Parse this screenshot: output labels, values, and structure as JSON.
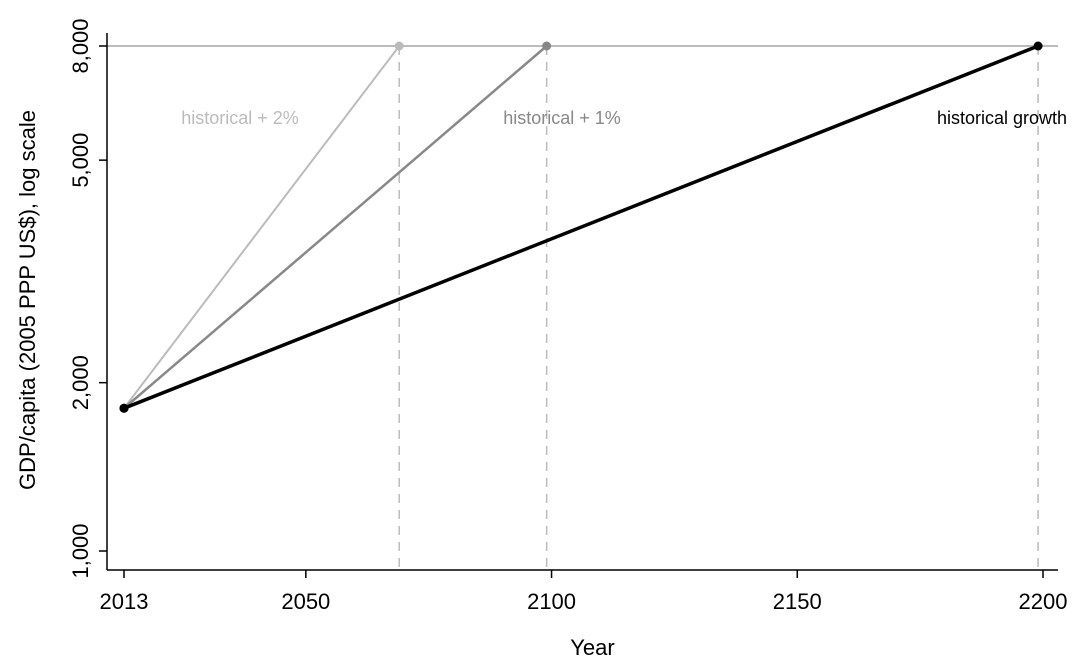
{
  "chart_data": {
    "type": "line",
    "xlabel": "Year",
    "ylabel": "GDP/capita (2005 PPP US$), log scale",
    "y_scale": "log",
    "x_ticks": [
      {
        "value": 2013,
        "label": "2013"
      },
      {
        "value": 2050,
        "label": "2050"
      },
      {
        "value": 2100,
        "label": "2100"
      },
      {
        "value": 2150,
        "label": "2150"
      },
      {
        "value": 2200,
        "label": "2200"
      }
    ],
    "y_ticks": [
      {
        "value": 1000,
        "label": "1,000"
      },
      {
        "value": 2000,
        "label": "2,000"
      },
      {
        "value": 5000,
        "label": "5,000"
      },
      {
        "value": 8000,
        "label": "8,000"
      }
    ],
    "xlim": [
      2013,
      2200
    ],
    "ylim": [
      1000,
      8000
    ],
    "grid": false,
    "target_line": {
      "y": 8000,
      "color": "#bbbbbb"
    },
    "series": [
      {
        "name": "historical + 2%",
        "color": "#bbbbbb",
        "points": [
          {
            "x": 2013,
            "y": 1800
          },
          {
            "x": 2069,
            "y": 8000
          }
        ]
      },
      {
        "name": "historical + 1%",
        "color": "#888888",
        "points": [
          {
            "x": 2013,
            "y": 1800
          },
          {
            "x": 2099,
            "y": 8000
          }
        ]
      },
      {
        "name": "historical growth",
        "color": "#000000",
        "points": [
          {
            "x": 2013,
            "y": 1800
          },
          {
            "x": 2199,
            "y": 8000
          }
        ]
      }
    ],
    "reference_lines": [
      {
        "x": 2069,
        "color": "#bbbbbb"
      },
      {
        "x": 2099,
        "color": "#bbbbbb"
      },
      {
        "x": 2199,
        "color": "#bbbbbb"
      }
    ]
  }
}
